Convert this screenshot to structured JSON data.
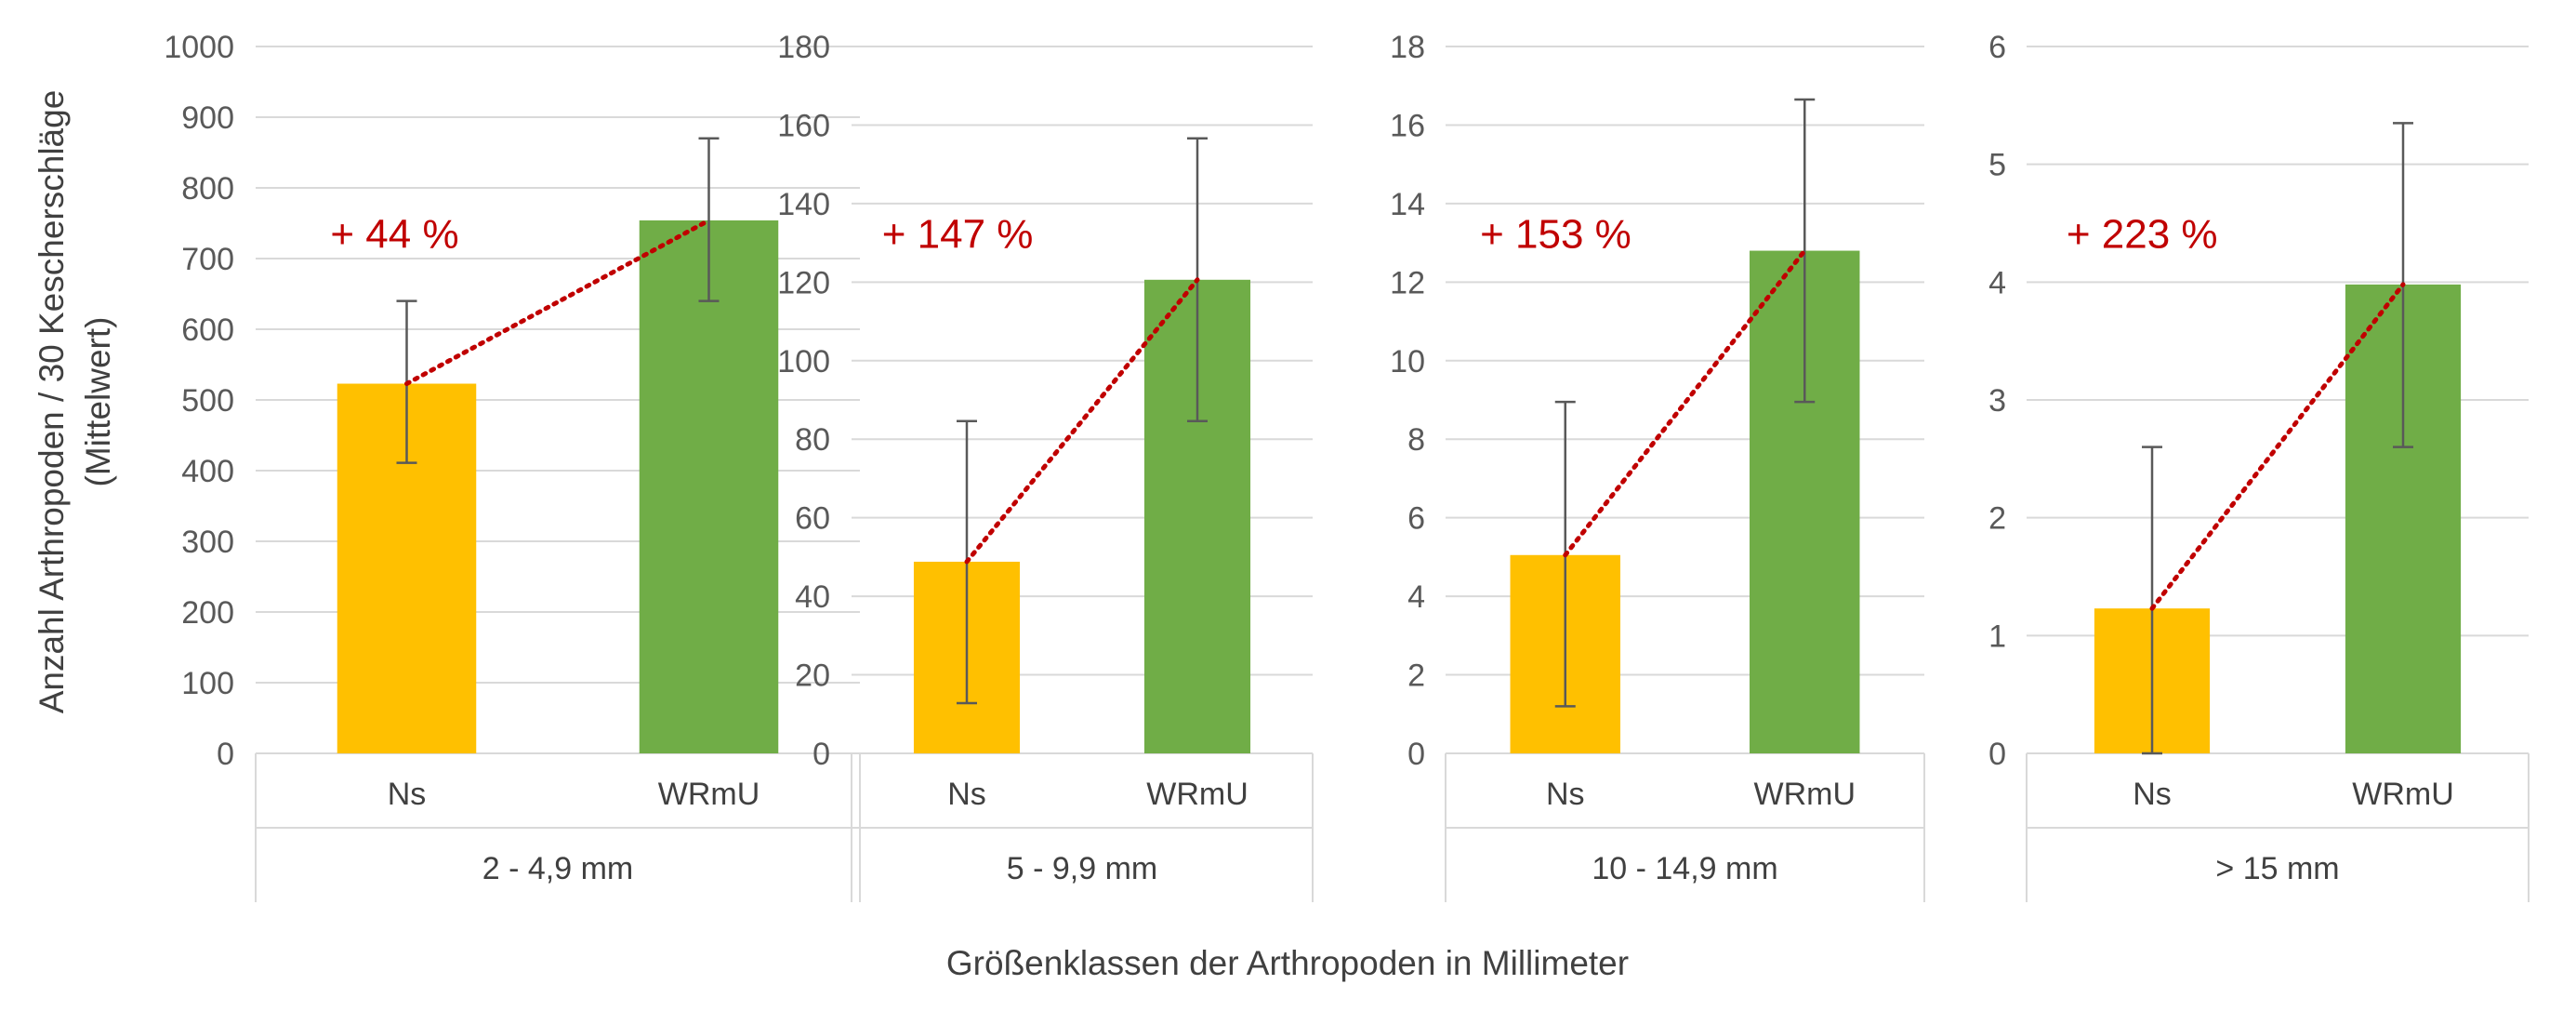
{
  "chart_data": {
    "type": "bar",
    "ylabel_lines": [
      "Anzahl Arthropoden / 30 Kescherschläge",
      "(Mittelwert)"
    ],
    "xlabel": "Größenklassen der Arthropoden in Millimeter",
    "grid": true,
    "colors": {
      "Ns": "#FFC000",
      "WRmU": "#70AD47",
      "annotation": "#C00000",
      "gridline": "#D9D9D9",
      "errorbar": "#595959"
    },
    "panels": [
      {
        "group_label": "2 - 4,9 mm",
        "ylim": [
          0,
          1000
        ],
        "yticks": [
          0,
          100,
          200,
          300,
          400,
          500,
          600,
          700,
          800,
          900,
          1000
        ],
        "categories": [
          "Ns",
          "WRmU"
        ],
        "values": [
          523,
          754
        ],
        "error_low": [
          411,
          640
        ],
        "error_high": [
          640,
          870
        ],
        "annotation": "+ 44 %"
      },
      {
        "group_label": "5 - 9,9 mm",
        "ylim": [
          0,
          180
        ],
        "yticks": [
          0,
          20,
          40,
          60,
          80,
          100,
          120,
          140,
          160,
          180
        ],
        "categories": [
          "Ns",
          "WRmU"
        ],
        "values": [
          48.8,
          120.6
        ],
        "error_low": [
          12.8,
          84.6
        ],
        "error_high": [
          84.6,
          156.6
        ],
        "annotation": "+ 147 %"
      },
      {
        "group_label": "10 - 14,9 mm",
        "ylim": [
          0,
          18
        ],
        "yticks": [
          0,
          2,
          4,
          6,
          8,
          10,
          12,
          14,
          16,
          18
        ],
        "categories": [
          "Ns",
          "WRmU"
        ],
        "values": [
          5.05,
          12.8
        ],
        "error_low": [
          1.2,
          8.95
        ],
        "error_high": [
          8.95,
          16.65
        ],
        "annotation": "+ 153 %"
      },
      {
        "group_label": "> 15 mm",
        "ylim": [
          0,
          6
        ],
        "yticks": [
          0,
          1,
          2,
          3,
          4,
          5,
          6
        ],
        "categories": [
          "Ns",
          "WRmU"
        ],
        "values": [
          1.23,
          3.98
        ],
        "error_low": [
          0,
          2.6
        ],
        "error_high": [
          2.6,
          5.35
        ],
        "annotation": "+ 223 %"
      }
    ]
  }
}
